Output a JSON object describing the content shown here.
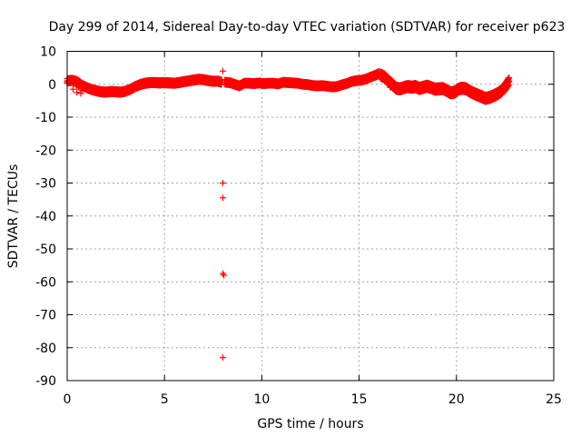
{
  "chart_data": {
    "type": "scatter",
    "title": "Day 299 of 2014, Sidereal Day-to-day VTEC variation (SDTVAR) for receiver p623",
    "xlabel": "GPS time / hours",
    "ylabel": "SDTVAR / TECUs",
    "xlim": [
      0,
      25
    ],
    "ylim": [
      -90,
      10
    ],
    "xticks": [
      0,
      5,
      10,
      15,
      20,
      25
    ],
    "yticks": [
      10,
      0,
      -10,
      -20,
      -30,
      -40,
      -50,
      -60,
      -70,
      -80,
      -90
    ],
    "grid": true,
    "marker": "plus",
    "color": "#ff0000",
    "series": [
      {
        "name": "SDTVAR p623",
        "points": [
          [
            0.0,
            0.5
          ],
          [
            0.1,
            1.0
          ],
          [
            0.2,
            1.5
          ],
          [
            0.3,
            1.0
          ],
          [
            0.4,
            0.0
          ],
          [
            0.5,
            -0.5
          ],
          [
            0.6,
            -1.0
          ],
          [
            0.7,
            -1.5
          ],
          [
            0.8,
            -2.0
          ],
          [
            0.3,
            -1.5
          ],
          [
            0.5,
            -2.5
          ],
          [
            0.7,
            -2.8
          ],
          [
            1.0,
            -1.0
          ],
          [
            1.2,
            -1.5
          ],
          [
            1.4,
            -2.0
          ],
          [
            1.6,
            -2.2
          ],
          [
            1.8,
            -2.5
          ],
          [
            2.0,
            -2.3
          ],
          [
            2.2,
            -2.0
          ],
          [
            2.4,
            -2.2
          ],
          [
            2.6,
            -2.5
          ],
          [
            2.8,
            -2.3
          ],
          [
            3.0,
            -2.0
          ],
          [
            3.2,
            -1.5
          ],
          [
            3.4,
            -1.0
          ],
          [
            3.6,
            -0.5
          ],
          [
            3.8,
            0.0
          ],
          [
            4.0,
            0.3
          ],
          [
            4.2,
            0.5
          ],
          [
            4.4,
            0.5
          ],
          [
            4.6,
            0.3
          ],
          [
            4.8,
            0.5
          ],
          [
            5.0,
            0.5
          ],
          [
            5.2,
            0.3
          ],
          [
            5.4,
            0.0
          ],
          [
            5.6,
            0.3
          ],
          [
            5.8,
            0.5
          ],
          [
            6.0,
            0.8
          ],
          [
            6.2,
            1.0
          ],
          [
            6.4,
            1.2
          ],
          [
            6.6,
            1.5
          ],
          [
            6.8,
            1.5
          ],
          [
            7.0,
            1.3
          ],
          [
            7.2,
            1.0
          ],
          [
            7.4,
            0.8
          ],
          [
            7.6,
            1.0
          ],
          [
            7.8,
            0.8
          ],
          [
            7.9,
            0.5
          ],
          [
            8.0,
            4.0
          ],
          [
            8.0,
            -30.0
          ],
          [
            8.0,
            -34.5
          ],
          [
            8.0,
            -57.5
          ],
          [
            8.05,
            -58.0
          ],
          [
            8.0,
            -83.0
          ],
          [
            8.2,
            0.5
          ],
          [
            8.4,
            0.3
          ],
          [
            8.6,
            -0.5
          ],
          [
            8.8,
            -1.0
          ],
          [
            9.0,
            0.5
          ],
          [
            9.2,
            0.3
          ],
          [
            9.4,
            0.0
          ],
          [
            9.6,
            0.5
          ],
          [
            9.8,
            0.3
          ],
          [
            10.0,
            0.0
          ],
          [
            10.2,
            0.5
          ],
          [
            10.4,
            0.3
          ],
          [
            10.6,
            0.0
          ],
          [
            10.8,
            0.5
          ],
          [
            11.0,
            0.8
          ],
          [
            11.2,
            0.5
          ],
          [
            11.4,
            0.3
          ],
          [
            11.6,
            0.5
          ],
          [
            11.8,
            0.3
          ],
          [
            12.0,
            0.0
          ],
          [
            12.2,
            0.0
          ],
          [
            12.4,
            -0.2
          ],
          [
            12.6,
            -0.5
          ],
          [
            12.8,
            -0.5
          ],
          [
            13.0,
            -0.3
          ],
          [
            13.2,
            -0.5
          ],
          [
            13.4,
            -0.8
          ],
          [
            13.6,
            -1.0
          ],
          [
            13.8,
            -0.5
          ],
          [
            14.0,
            -0.3
          ],
          [
            14.2,
            0.0
          ],
          [
            14.4,
            0.5
          ],
          [
            14.6,
            1.0
          ],
          [
            14.8,
            1.2
          ],
          [
            15.0,
            1.0
          ],
          [
            15.2,
            1.5
          ],
          [
            15.4,
            2.0
          ],
          [
            15.6,
            2.5
          ],
          [
            15.8,
            3.0
          ],
          [
            16.0,
            3.5
          ],
          [
            16.1,
            2.5
          ],
          [
            16.2,
            3.0
          ],
          [
            16.3,
            1.0
          ],
          [
            16.4,
            2.0
          ],
          [
            16.5,
            1.5
          ],
          [
            16.6,
            -1.0
          ],
          [
            16.7,
            -0.5
          ],
          [
            16.8,
            -1.0
          ],
          [
            16.9,
            -2.0
          ],
          [
            17.0,
            -1.5
          ],
          [
            17.2,
            -1.0
          ],
          [
            17.4,
            -0.5
          ],
          [
            17.6,
            -1.0
          ],
          [
            17.8,
            -0.5
          ],
          [
            18.0,
            -1.5
          ],
          [
            18.2,
            -1.0
          ],
          [
            18.4,
            -0.5
          ],
          [
            18.6,
            -1.0
          ],
          [
            18.8,
            -1.5
          ],
          [
            19.0,
            -2.0
          ],
          [
            19.2,
            -1.0
          ],
          [
            19.4,
            -1.5
          ],
          [
            19.6,
            -2.0
          ],
          [
            19.8,
            -3.0
          ],
          [
            20.0,
            -2.5
          ],
          [
            20.2,
            -1.5
          ],
          [
            20.4,
            -1.0
          ],
          [
            20.6,
            -1.5
          ],
          [
            20.8,
            -2.5
          ],
          [
            21.0,
            -3.0
          ],
          [
            21.2,
            -3.5
          ],
          [
            21.4,
            -4.0
          ],
          [
            21.6,
            -4.5
          ],
          [
            21.8,
            -4.0
          ],
          [
            22.0,
            -3.5
          ],
          [
            22.2,
            -3.0
          ],
          [
            22.4,
            -2.0
          ],
          [
            22.5,
            -1.0
          ],
          [
            22.6,
            0.0
          ],
          [
            22.7,
            1.0
          ],
          [
            22.7,
            2.0
          ]
        ],
        "bands": [
          {
            "x": [
              0.0,
              0.25,
              0.5,
              0.75,
              1.0,
              1.25,
              1.5,
              1.75,
              2.0,
              2.25,
              2.5,
              2.75,
              3.0,
              3.25,
              3.5,
              3.75,
              4.0,
              4.25,
              4.5,
              4.75,
              5.0,
              5.25,
              5.5,
              5.75,
              6.0,
              6.25,
              6.5,
              6.75,
              7.0,
              7.25,
              7.5,
              7.75,
              7.95
            ],
            "y": [
              1.0,
              1.2,
              0.8,
              -0.3,
              -1.0,
              -1.6,
              -2.0,
              -2.3,
              -2.4,
              -2.2,
              -2.3,
              -2.4,
              -2.1,
              -1.5,
              -0.7,
              -0.1,
              0.3,
              0.5,
              0.5,
              0.4,
              0.5,
              0.4,
              0.3,
              0.5,
              0.8,
              1.0,
              1.3,
              1.5,
              1.4,
              1.1,
              0.9,
              0.9,
              0.6
            ],
            "spread": 1.4
          },
          {
            "x": [
              8.1,
              8.35,
              8.6,
              8.85,
              9.1,
              9.35,
              9.6,
              9.85,
              10.1,
              10.35,
              10.6,
              10.85,
              11.1,
              11.35,
              11.6,
              11.85,
              12.1,
              12.35,
              12.6,
              12.85,
              13.1,
              13.35,
              13.6,
              13.85,
              14.1,
              14.35,
              14.6,
              14.85,
              15.1,
              15.35,
              15.6,
              15.85,
              16.05
            ],
            "y": [
              0.6,
              0.5,
              0.0,
              -0.5,
              0.3,
              0.3,
              0.2,
              0.4,
              0.2,
              0.3,
              0.3,
              0.1,
              0.6,
              0.5,
              0.4,
              0.3,
              0.0,
              -0.1,
              -0.4,
              -0.5,
              -0.4,
              -0.6,
              -0.8,
              -0.7,
              -0.2,
              0.2,
              0.8,
              1.1,
              1.2,
              1.6,
              2.2,
              2.8,
              3.3
            ],
            "spread": 1.3
          },
          {
            "x": [
              16.1,
              16.3,
              16.5,
              16.7,
              16.9,
              17.1,
              17.3,
              17.5,
              17.7,
              17.9,
              18.1,
              18.3,
              18.5,
              18.7,
              18.9,
              19.1,
              19.3,
              19.5,
              19.7,
              19.9,
              20.1,
              20.3,
              20.5,
              20.7,
              20.9,
              21.1,
              21.3,
              21.5,
              21.7,
              21.9,
              22.1,
              22.3,
              22.5,
              22.7
            ],
            "y": [
              2.8,
              2.2,
              1.0,
              0.0,
              -1.2,
              -1.4,
              -1.0,
              -0.7,
              -0.9,
              -0.7,
              -1.3,
              -0.9,
              -0.6,
              -1.0,
              -1.5,
              -1.4,
              -1.3,
              -1.9,
              -2.6,
              -2.4,
              -1.5,
              -1.2,
              -1.4,
              -2.2,
              -2.8,
              -3.3,
              -3.8,
              -4.3,
              -4.0,
              -3.5,
              -2.9,
              -2.1,
              -0.8,
              1.0
            ],
            "spread": 2.0
          }
        ]
      }
    ]
  }
}
